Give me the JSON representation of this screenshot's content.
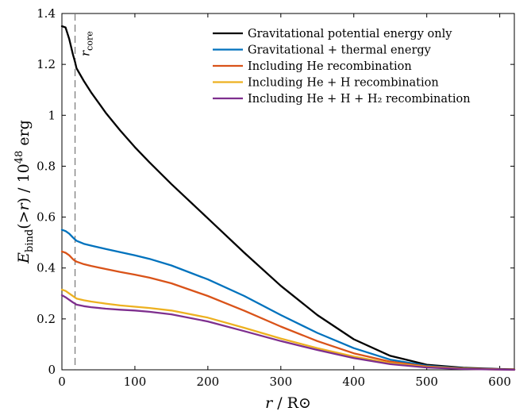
{
  "chart_data": {
    "type": "line",
    "xlabel": "r / R⊙",
    "ylabel": "E_bind(>r) / 10^48 erg",
    "xlim": [
      0,
      620
    ],
    "ylim": [
      0,
      1.4
    ],
    "xticks": [
      0,
      100,
      200,
      300,
      400,
      500,
      600
    ],
    "yticks": [
      0,
      0.2,
      0.4,
      0.6,
      0.8,
      1,
      1.2,
      1.4
    ],
    "xtick_labels": [
      "0",
      "100",
      "200",
      "300",
      "400",
      "500",
      "600"
    ],
    "ytick_labels": [
      "0",
      "0.2",
      "0.4",
      "0.6",
      "0.8",
      "1",
      "1.2",
      "1.4"
    ],
    "grid": false,
    "legend_position": "top-right",
    "annotation": {
      "label": "r_core",
      "x": 18,
      "style": "dashed vertical line"
    },
    "series": [
      {
        "name": "Gravitational potential energy only",
        "color": "#000000",
        "x": [
          0,
          5,
          10,
          15,
          18,
          20,
          25,
          30,
          40,
          50,
          60,
          80,
          100,
          120,
          150,
          200,
          250,
          300,
          350,
          400,
          450,
          500,
          550,
          600,
          620
        ],
        "y": [
          1.35,
          1.345,
          1.3,
          1.24,
          1.21,
          1.185,
          1.16,
          1.135,
          1.09,
          1.05,
          1.01,
          0.94,
          0.875,
          0.815,
          0.73,
          0.595,
          0.46,
          0.33,
          0.215,
          0.12,
          0.055,
          0.02,
          0.008,
          0.003,
          0.002
        ]
      },
      {
        "name": "Gravitational + thermal energy",
        "color": "#0072BD",
        "x": [
          0,
          5,
          10,
          15,
          18,
          20,
          30,
          40,
          60,
          80,
          100,
          120,
          150,
          200,
          250,
          300,
          350,
          400,
          450,
          500,
          550,
          600,
          620
        ],
        "y": [
          0.55,
          0.545,
          0.535,
          0.52,
          0.512,
          0.507,
          0.495,
          0.488,
          0.475,
          0.462,
          0.45,
          0.436,
          0.41,
          0.355,
          0.29,
          0.215,
          0.145,
          0.085,
          0.04,
          0.016,
          0.006,
          0.002,
          0.001
        ]
      },
      {
        "name": "Including He recombination",
        "color": "#D95319",
        "x": [
          0,
          5,
          10,
          15,
          18,
          20,
          30,
          40,
          60,
          80,
          100,
          120,
          150,
          200,
          250,
          300,
          350,
          400,
          450,
          500,
          550,
          600,
          620
        ],
        "y": [
          0.465,
          0.46,
          0.45,
          0.435,
          0.428,
          0.425,
          0.415,
          0.408,
          0.396,
          0.384,
          0.374,
          0.362,
          0.34,
          0.29,
          0.232,
          0.17,
          0.113,
          0.065,
          0.032,
          0.013,
          0.005,
          0.002,
          0.001
        ]
      },
      {
        "name": "Including He + H recombination",
        "color": "#EDB120",
        "x": [
          0,
          5,
          10,
          15,
          18,
          20,
          30,
          40,
          60,
          80,
          100,
          120,
          150,
          200,
          250,
          300,
          350,
          400,
          450,
          500,
          550,
          600,
          620
        ],
        "y": [
          0.315,
          0.31,
          0.3,
          0.29,
          0.284,
          0.28,
          0.273,
          0.268,
          0.26,
          0.253,
          0.248,
          0.243,
          0.233,
          0.205,
          0.165,
          0.123,
          0.085,
          0.052,
          0.026,
          0.011,
          0.004,
          0.001,
          0.0
        ]
      },
      {
        "name": "Including He + H + H₂ recombination",
        "color": "#7E2F8E",
        "x": [
          0,
          5,
          10,
          15,
          18,
          20,
          30,
          40,
          60,
          80,
          100,
          120,
          150,
          200,
          250,
          300,
          350,
          400,
          450,
          500,
          550,
          600,
          620
        ],
        "y": [
          0.293,
          0.285,
          0.275,
          0.265,
          0.26,
          0.256,
          0.25,
          0.246,
          0.24,
          0.236,
          0.233,
          0.228,
          0.218,
          0.19,
          0.152,
          0.113,
          0.078,
          0.046,
          0.022,
          0.009,
          0.003,
          0.001,
          0.0
        ]
      }
    ]
  }
}
